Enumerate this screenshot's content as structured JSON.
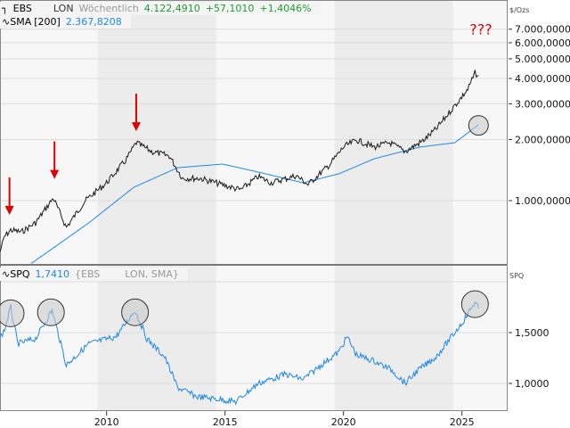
{
  "colors": {
    "price": "#1a1a1a",
    "sma": "#1e88e5",
    "ratio": "#1e88e5",
    "annotation": "#e00000",
    "positive": "#1a9e2e"
  },
  "legend_top": {
    "symbol": "EBS",
    "exchange": "LON",
    "interval": "Wöchentlich",
    "last": "4.122,4910",
    "change": "+57,1010",
    "change_pct": "+1,4046%",
    "sma_label": "SMA",
    "sma_period": "[200]",
    "sma_value": "2.367,8208"
  },
  "legend_bottom": {
    "label": "SPQ",
    "value": "1,7410",
    "formula_a": "{EBS",
    "formula_b": "LON, SMA}"
  },
  "annotation_text": "???",
  "chart_data": [
    {
      "type": "line",
      "unit_label": "$/Ozs",
      "y_scale": "log",
      "ylim": [
        450,
        7500
      ],
      "xlim": [
        2005.5,
        2026.9
      ],
      "y_ticks": [
        {
          "v": 1000,
          "label": "1.000,0000"
        },
        {
          "v": 2000,
          "label": "2.000,0000"
        },
        {
          "v": 3000,
          "label": "3.000,0000"
        },
        {
          "v": 4000,
          "label": "4.000,0000"
        },
        {
          "v": 5000,
          "label": "5.000,0000"
        },
        {
          "v": 6000,
          "label": "6.000,0000"
        },
        {
          "v": 7000,
          "label": "7.000,0000"
        }
      ],
      "grid": true,
      "series": [
        {
          "name": "EBS",
          "x": [
            2005.5,
            2005.7,
            2005.95,
            2006.4,
            2007.0,
            2007.75,
            2008.3,
            2009.1,
            2010.0,
            2010.8,
            2011.25,
            2011.9,
            2012.65,
            2013.2,
            2013.95,
            2015.0,
            2015.65,
            2016.4,
            2016.95,
            2018.0,
            2018.5,
            2019.4,
            2020.0,
            2020.55,
            2021.3,
            2021.95,
            2022.6,
            2023.35,
            2023.9,
            2024.5,
            2024.95,
            2025.25,
            2025.55,
            2025.7
          ],
          "y": [
            560,
            668,
            716,
            700,
            777,
            1030,
            738,
            1000,
            1224,
            1577,
            1930,
            1745,
            1660,
            1288,
            1288,
            1187,
            1129,
            1314,
            1224,
            1328,
            1200,
            1498,
            1835,
            1990,
            1835,
            1930,
            1745,
            1970,
            2246,
            2750,
            3200,
            3540,
            4250,
            4122
          ]
        },
        {
          "name": "SMA",
          "x": [
            2006.8,
            2009.25,
            2011.15,
            2013.0,
            2014.9,
            2016.4,
            2018.3,
            2019.8,
            2021.3,
            2023.2,
            2024.7,
            2025.7
          ],
          "y": [
            488,
            777,
            1164,
            1453,
            1514,
            1383,
            1224,
            1355,
            1609,
            1835,
            1930,
            2368
          ]
        }
      ],
      "annotations": [
        {
          "type": "arrow",
          "x": 2005.9,
          "y": 850
        },
        {
          "type": "arrow",
          "x": 2007.8,
          "y": 1280
        },
        {
          "type": "arrow",
          "x": 2011.25,
          "y": 2200
        },
        {
          "type": "circle",
          "x": 2025.7,
          "y": 2350
        },
        {
          "type": "text",
          "text": "???",
          "x": 2025.8,
          "y": 6600
        }
      ]
    },
    {
      "type": "line",
      "unit_label": "SPQ",
      "ylim": [
        0.72,
        2.15
      ],
      "xlim": [
        2005.5,
        2026.9
      ],
      "y_ticks": [
        {
          "v": 1.0,
          "label": "1,0000"
        },
        {
          "v": 1.5,
          "label": "1,5000"
        },
        {
          "v": 2.0,
          "label": ""
        }
      ],
      "x_ticks": [
        {
          "v": 2010,
          "label": "2010"
        },
        {
          "v": 2015,
          "label": "2015"
        },
        {
          "v": 2020,
          "label": "2020"
        },
        {
          "v": 2025,
          "label": "2025"
        }
      ],
      "grid": true,
      "series": [
        {
          "name": "SPQ",
          "x": [
            2005.5,
            2005.7,
            2005.95,
            2006.25,
            2007.0,
            2007.7,
            2008.3,
            2009.25,
            2010.4,
            2011.2,
            2011.7,
            2012.45,
            2013.0,
            2013.8,
            2014.9,
            2015.45,
            2016.4,
            2017.55,
            2018.3,
            2019.05,
            2019.8,
            2020.15,
            2020.55,
            2021.3,
            2022.05,
            2022.6,
            2023.15,
            2023.9,
            2024.5,
            2025.05,
            2025.55,
            2025.7
          ],
          "y": [
            1.45,
            1.53,
            1.75,
            1.39,
            1.44,
            1.72,
            1.18,
            1.39,
            1.46,
            1.72,
            1.44,
            1.26,
            0.96,
            0.87,
            0.84,
            0.82,
            1.0,
            1.09,
            1.04,
            1.18,
            1.31,
            1.46,
            1.28,
            1.22,
            1.13,
            1.0,
            1.13,
            1.26,
            1.44,
            1.61,
            1.8,
            1.74
          ]
        }
      ],
      "annotations": [
        {
          "type": "circle",
          "x": 2005.95,
          "y": 1.69
        },
        {
          "type": "circle",
          "x": 2007.65,
          "y": 1.7
        },
        {
          "type": "circle",
          "x": 2011.2,
          "y": 1.7
        },
        {
          "type": "circle",
          "x": 2025.55,
          "y": 1.78
        }
      ]
    }
  ]
}
